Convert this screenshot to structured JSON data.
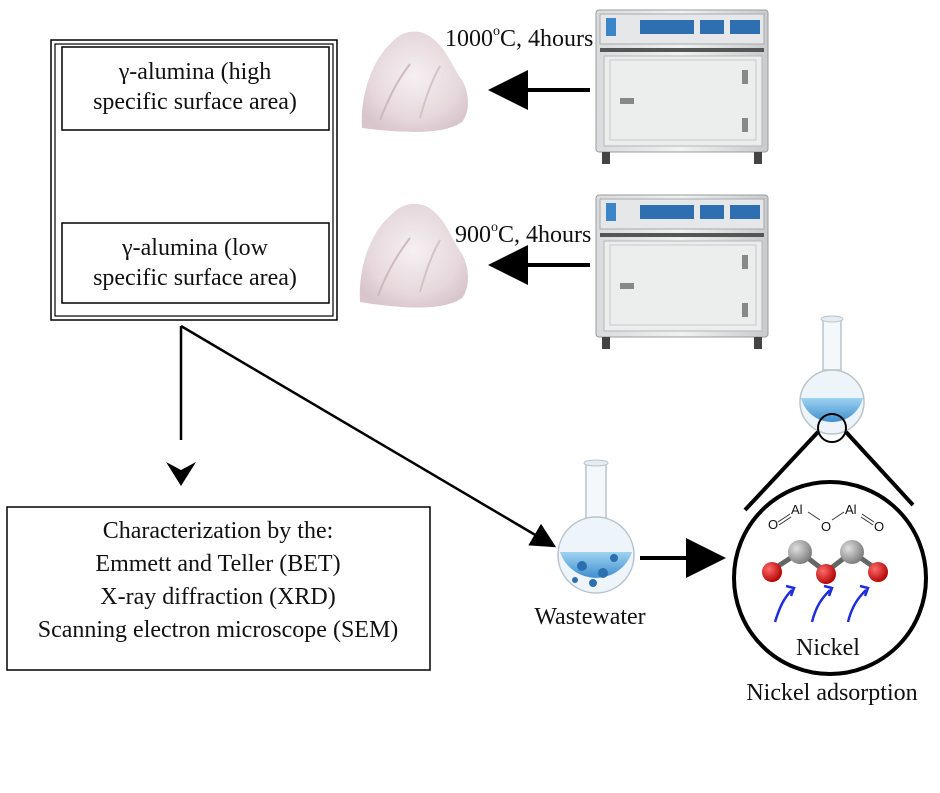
{
  "alumina_high": {
    "line1": "γ-alumina (high",
    "line2": "specific surface area)"
  },
  "alumina_low": {
    "line1": "γ-alumina (low",
    "line2": "specific surface area)"
  },
  "calcination_high": {
    "temp": "1000",
    "deg": "o",
    "rest": "C, 4hours"
  },
  "calcination_low": {
    "temp": "900",
    "deg": "o",
    "rest": "C, 4hours"
  },
  "characterization": {
    "lines": [
      "Characterization by the:",
      "Emmett and Teller (BET)",
      "X-ray diffraction (XRD)",
      "Scanning electron microscope (SEM)"
    ]
  },
  "wastewater_label": "Wastewater",
  "zoom": {
    "atom_al": "Al",
    "atom_o": "O",
    "metal_label": "Nickel",
    "caption": "Nickel adsorption"
  }
}
